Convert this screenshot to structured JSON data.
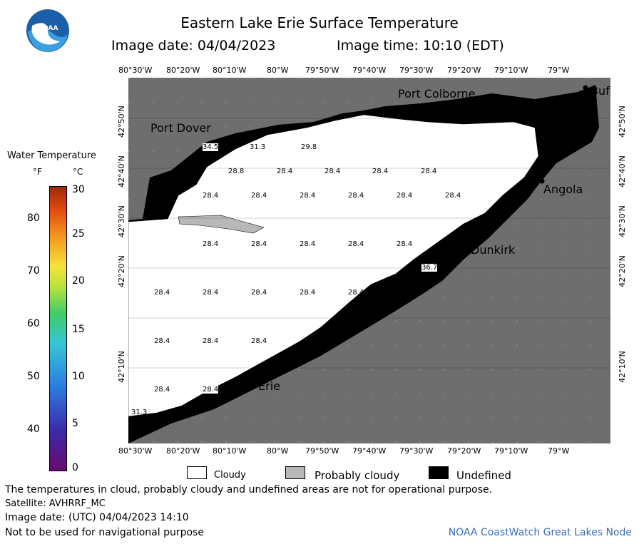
{
  "header": {
    "title": "Eastern Lake Erie Surface Temperature",
    "image_date": "Image date: 04/04/2023",
    "image_time": "Image time: 10:10 (EDT)",
    "logo_text": "NOAA"
  },
  "axes": {
    "lon_labels": [
      "80°30'W",
      "80°20'W",
      "80°10'W",
      "80°W",
      "79°50'W",
      "79°40'W",
      "79°30'W",
      "79°20'W",
      "79°10'W",
      "79°W"
    ],
    "lat_labels": [
      "42°50'N",
      "42°40'N",
      "42°30'N",
      "42°20'N",
      "42°10'N"
    ]
  },
  "places": {
    "port_colborne": "Port Colborne",
    "port_dover": "Port Dover",
    "angola": "Angola",
    "dunkirk": "Dunkirk",
    "erie": "Erie",
    "buffalo": "Buf"
  },
  "color_legend": {
    "title": "Water Temperature",
    "unit_f": "°F",
    "unit_c": "°C",
    "f_ticks": [
      "80",
      "70",
      "60",
      "50",
      "40"
    ],
    "c_ticks": [
      "30",
      "25",
      "20",
      "15",
      "10",
      "5",
      "0"
    ],
    "colors": [
      "#6a0a6e",
      "#3b2aa8",
      "#2b7fe0",
      "#35c7d6",
      "#3ecb6a",
      "#b9e43a",
      "#f6e23a",
      "#f59a1e",
      "#e04a10",
      "#9c2a08"
    ]
  },
  "map_legend": {
    "cloudy": "Cloudy",
    "probably_cloudy": "Probably cloudy",
    "undefined": "Undefined"
  },
  "temperature_labels": [
    "34.5",
    "31.3",
    "29.8",
    "28.8",
    "28.4",
    "36.7",
    "31.3",
    "28.4",
    "28.4",
    "28.4"
  ],
  "footer": {
    "disclaimer": "The temperatures in cloud, probably cloudy and undefined areas are not for operational purpose.",
    "satellite": "Satellite: AVHRRF_MC",
    "utc_date": "Image date: (UTC) 04/04/2023  14:10",
    "nav_warning": "Not to be used for navigational purpose",
    "credit": "NOAA CoastWatch Great Lakes Node"
  }
}
